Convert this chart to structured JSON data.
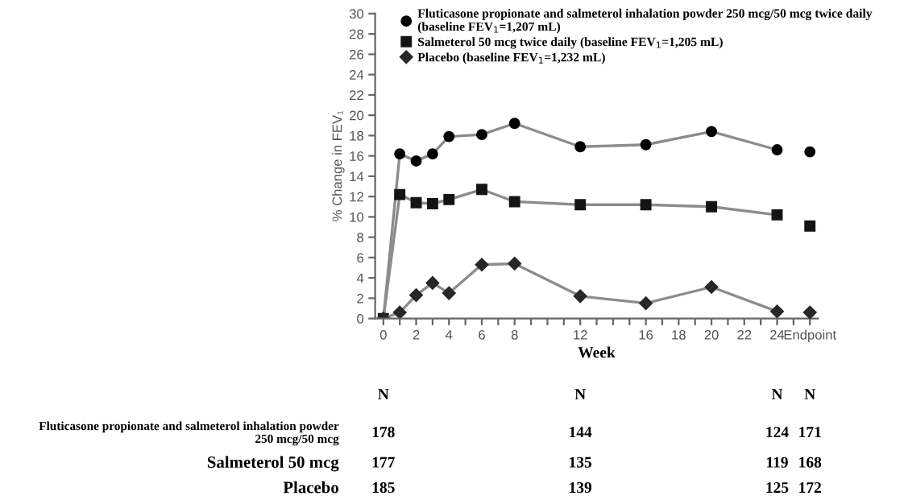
{
  "chart_data": {
    "type": "line",
    "xlabel": "Week",
    "ylabel": "% Change in FEV₁",
    "xlim": [
      -0.5,
      26.5
    ],
    "ylim": [
      0,
      30
    ],
    "yticks": [
      0,
      2,
      4,
      6,
      8,
      10,
      12,
      14,
      16,
      18,
      20,
      22,
      24,
      26,
      28,
      30
    ],
    "xticks": [
      0,
      {
        "value": 1,
        "label": null
      },
      2,
      {
        "value": 3,
        "label": null
      },
      4,
      {
        "value": 5,
        "label": null
      },
      6,
      {
        "value": 7,
        "label": null
      },
      8,
      {
        "value": 9,
        "label": null
      },
      {
        "value": 10,
        "label": null
      },
      {
        "value": 11,
        "label": null
      },
      12,
      {
        "value": 13,
        "label": null
      },
      {
        "value": 14,
        "label": null
      },
      {
        "value": 15,
        "label": null
      },
      16,
      {
        "value": 17,
        "label": null
      },
      18,
      {
        "value": 19,
        "label": null
      },
      20,
      {
        "value": 21,
        "label": null
      },
      22,
      {
        "value": 23,
        "label": null
      },
      24,
      {
        "value": 25,
        "label": null
      },
      {
        "value": 26,
        "label": "Endpoint"
      }
    ],
    "legend": "top",
    "series": [
      {
        "name": "Fluticasone propionate and salmeterol inhalation powder 250 mcg/50 mcg twice daily (baseline FEV$_{1}$=1,207 mL)",
        "color": "#000000",
        "marker": "circle",
        "x": [
          0,
          1,
          2,
          3,
          4,
          6,
          8,
          12,
          16,
          20,
          24
        ],
        "values": [
          0,
          16.2,
          15.5,
          16.2,
          17.9,
          18.1,
          19.2,
          16.9,
          17.1,
          18.4,
          16.6
        ]
      },
      {
        "name": "Salmeterol 50 mcg twice daily (baseline FEV$_{1}$=1,205 mL)",
        "color": "#141414",
        "marker": "square",
        "x": [
          0,
          1,
          2,
          3,
          4,
          6,
          8,
          12,
          16,
          20,
          24
        ],
        "values": [
          0,
          12.2,
          11.4,
          11.3,
          11.7,
          12.7,
          11.5,
          11.2,
          11.2,
          11.0,
          10.2
        ]
      },
      {
        "name": "Placebo (baseline FEV$_{1}$=1,232 mL)",
        "color": "#282828",
        "marker": "diamond",
        "x": [
          0,
          1,
          2,
          3,
          4,
          6,
          8,
          12,
          16,
          20,
          24
        ],
        "values": [
          0,
          0.6,
          2.3,
          3.5,
          2.5,
          5.3,
          5.4,
          2.2,
          1.5,
          3.1,
          0.7
        ]
      },
      {
        "type": "scatter",
        "color": "#000000",
        "marker": "circle",
        "x": [
          26
        ],
        "values": [
          16.4
        ]
      },
      {
        "type": "scatter",
        "color": "#141414",
        "marker": "square",
        "x": [
          26
        ],
        "values": [
          9.1
        ]
      },
      {
        "type": "scatter",
        "color": "#282828",
        "marker": "diamond",
        "x": [
          26
        ],
        "values": [
          0.6
        ]
      }
    ],
    "annotations": [
      "N",
      "N",
      "N",
      "N",
      "Fluticasone propionate and salmeterol inhalation powder\n250 mcg/50 mcg",
      "178",
      "144",
      "124",
      "171",
      "Salmeterol 50 mcg",
      "177",
      "135",
      "119",
      "168",
      "Placebo",
      "185",
      "139",
      "125",
      "172"
    ]
  }
}
